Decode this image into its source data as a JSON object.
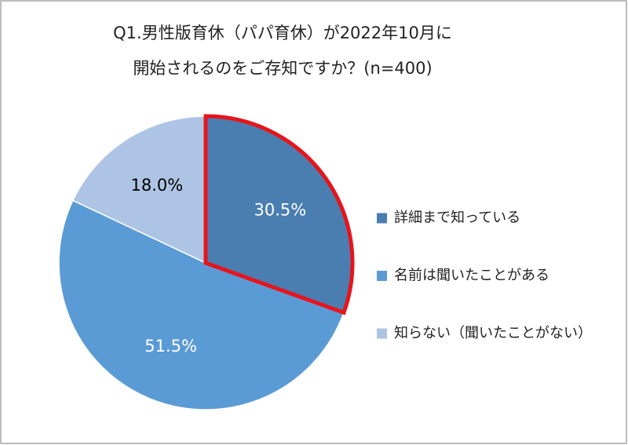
{
  "chart_data": {
    "type": "pie",
    "title": [
      "Q1.男性版育休（パパ育休）が2022年10月に",
      "開始されるのをご存知ですか？(n=400)"
    ],
    "categories": [
      "詳細まで知っている",
      "名前は聞いたことがある",
      "知らない（聞いたことがない）"
    ],
    "values": [
      30.5,
      51.5,
      18.0
    ],
    "value_labels": [
      "30.5%",
      "51.5%",
      "18.0%"
    ],
    "colors": [
      "#4a7eb0",
      "#5b9bd5",
      "#adc4e4"
    ],
    "label_colors": [
      "#ffffff",
      "#ffffff",
      "#000000"
    ],
    "highlight_index": 0,
    "highlight_color": "#e8141c",
    "legend": "right"
  }
}
